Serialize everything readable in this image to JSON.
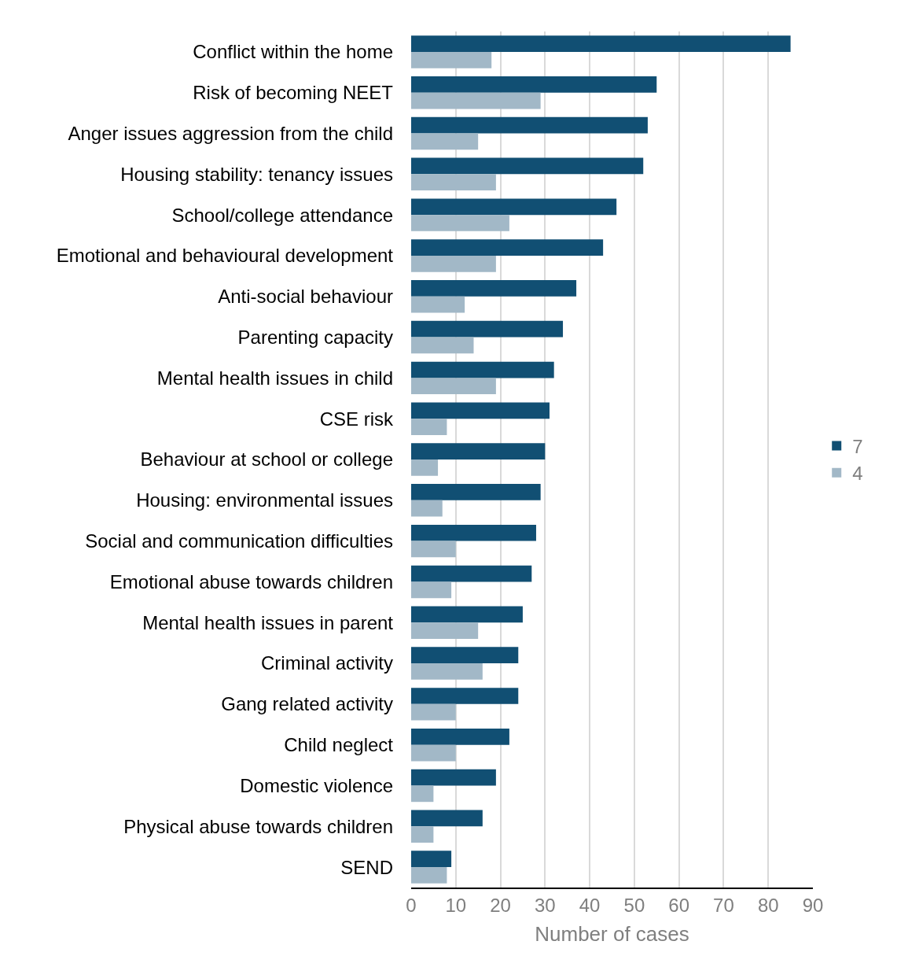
{
  "chart_data": {
    "type": "bar",
    "orientation": "horizontal",
    "xlabel": "Number of cases",
    "categories": [
      "Conflict within the home",
      "Risk of becoming NEET",
      "Anger issues aggression from the child",
      "Housing stability: tenancy issues",
      "School/college attendance",
      "Emotional and behavioural development",
      "Anti-social behaviour",
      "Parenting capacity",
      "Mental health issues in child",
      "CSE risk",
      "Behaviour at school or college",
      "Housing: environmental issues",
      "Social and communication difficulties",
      "Emotional abuse towards children",
      "Mental health issues in parent",
      "Criminal activity",
      "Gang related activity",
      "Child neglect",
      "Domestic violence",
      "Physical abuse towards children",
      "SEND"
    ],
    "series": [
      {
        "name": "7",
        "color": "#114f73",
        "values": [
          85,
          55,
          53,
          52,
          46,
          43,
          37,
          34,
          32,
          31,
          30,
          29,
          28,
          27,
          25,
          24,
          24,
          22,
          19,
          16,
          9
        ]
      },
      {
        "name": "4",
        "color": "#a2b8c7",
        "values": [
          18,
          29,
          15,
          19,
          22,
          19,
          12,
          14,
          19,
          8,
          6,
          7,
          10,
          9,
          15,
          16,
          10,
          10,
          5,
          5,
          8
        ]
      }
    ],
    "xlim": [
      0,
      90
    ],
    "xticks": [
      0,
      10,
      20,
      30,
      40,
      50,
      60,
      70,
      80,
      90
    ],
    "grid": "x",
    "legend": "right"
  }
}
